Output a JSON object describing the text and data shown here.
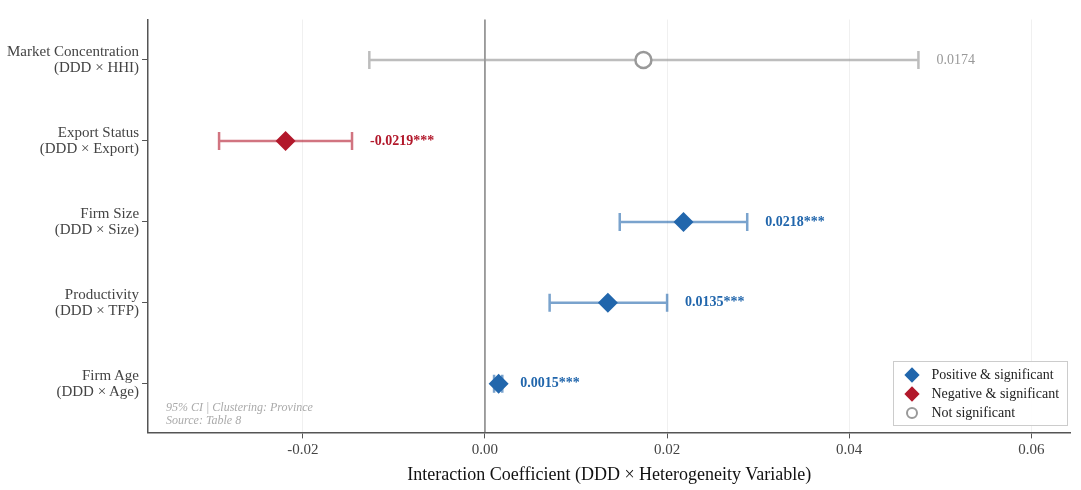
{
  "chart_data": {
    "type": "scatter",
    "orientation": "horizontal",
    "categories": [
      "Market Concentration\n(DDD × HHI)",
      "Export Status\n(DDD × Export)",
      "Firm Size\n(DDD × Size)",
      "Productivity\n(DDD × TFP)",
      "Firm Age\n(DDD × Age)"
    ],
    "series": [
      {
        "name": "Positive & significant",
        "color": "#2166ac",
        "marker": "diamond",
        "values": [
          null,
          null,
          0.0218,
          0.0135,
          0.0015
        ],
        "errors": [
          null,
          null,
          [
            0.0148,
            0.0288
          ],
          [
            0.0071,
            0.02
          ],
          [
            0.001,
            0.0019
          ]
        ]
      },
      {
        "name": "Negative & significant",
        "color": "#b2182b",
        "marker": "diamond",
        "values": [
          null,
          -0.0219,
          null,
          null,
          null
        ],
        "errors": [
          null,
          [
            -0.0292,
            -0.0146
          ],
          null,
          null,
          null
        ]
      },
      {
        "name": "Not significant",
        "color": "#999999",
        "marker": "circle",
        "values": [
          0.0174,
          null,
          null,
          null,
          null
        ],
        "errors": [
          [
            -0.0127,
            0.0476
          ],
          null,
          null,
          null,
          null
        ]
      }
    ],
    "xlabel": "Interaction Coefficient (DDD × Heterogeneity Variable)",
    "xlim": [
      -0.037,
      0.0643
    ],
    "xticks": [
      -0.02,
      {
        "value": 0,
        "label": "0.00"
      },
      0.02,
      0.04,
      0.06
    ],
    "grid": "x",
    "legend": "bottom right",
    "ref_lines": [
      {
        "axis": "x",
        "value": 0,
        "color": "#666666"
      }
    ],
    "annotations": [
      "95% CI | Clustering: Province",
      "Source: Table 8",
      {
        "text": "0.0174",
        "x": 0.0476,
        "y": "Market Concentration\n(DDD × HHI)"
      },
      {
        "text": "-0.0219***",
        "x": -0.0146,
        "y": "Export Status\n(DDD × Export)"
      },
      {
        "text": "0.0218***",
        "x": 0.0288,
        "y": "Firm Size\n(DDD × Size)"
      },
      {
        "text": "0.0135***",
        "x": 0.02,
        "y": "Productivity\n(DDD × TFP)"
      },
      {
        "text": "0.0015***",
        "x": 0.0019,
        "y": "Firm Age\n(DDD × Age)"
      }
    ]
  }
}
